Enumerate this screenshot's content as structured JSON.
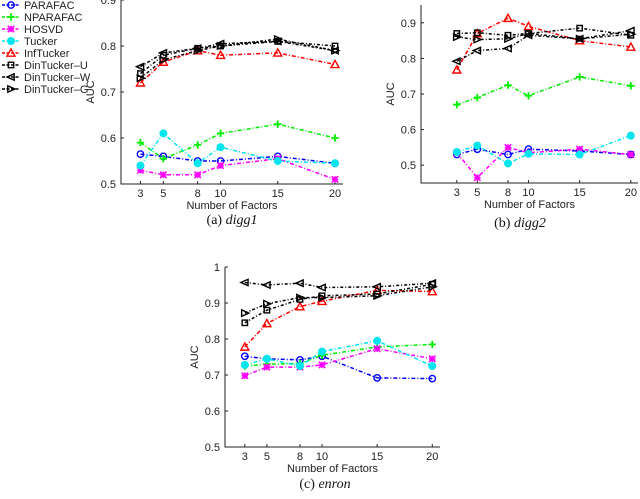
{
  "chart_data": [
    {
      "type": "line",
      "caption_label": "(a)",
      "caption_name": "digg1",
      "xlabel": "Number of Factors",
      "ylabel": "AUC",
      "x": [
        3,
        5,
        8,
        10,
        15,
        20
      ],
      "xticks": [
        "3",
        "5",
        "8",
        "10",
        "15",
        "20"
      ],
      "yticks": [
        "0.5",
        "0.6",
        "0.7",
        "0.8",
        "0.9"
      ],
      "ytick_values": [
        0.5,
        0.6,
        0.7,
        0.8,
        0.9
      ],
      "ylim": [
        0.5,
        0.9
      ],
      "xlim": [
        1.3,
        20.7
      ],
      "series": [
        {
          "name": "PARAFAC",
          "values": [
            0.565,
            0.56,
            0.55,
            0.55,
            0.56,
            0.545
          ]
        },
        {
          "name": "NPARAFAC",
          "values": [
            0.59,
            0.555,
            0.585,
            0.61,
            0.63,
            0.6
          ]
        },
        {
          "name": "HOSVD",
          "values": [
            0.53,
            0.52,
            0.52,
            0.54,
            0.555,
            0.51
          ]
        },
        {
          "name": "Tucker",
          "values": [
            0.54,
            0.61,
            0.545,
            0.58,
            0.55,
            0.545
          ]
        },
        {
          "name": "InfTucker",
          "values": [
            0.72,
            0.765,
            0.79,
            0.78,
            0.785,
            0.76
          ]
        },
        {
          "name": "DinTucker–U",
          "values": [
            0.74,
            0.78,
            0.795,
            0.8,
            0.81,
            0.8
          ]
        },
        {
          "name": "DinTucker–W",
          "values": [
            0.755,
            0.785,
            0.795,
            0.805,
            0.81,
            0.79
          ]
        },
        {
          "name": "DinTucker–G",
          "values": [
            0.73,
            0.77,
            0.79,
            0.8,
            0.815,
            0.79
          ]
        }
      ]
    },
    {
      "type": "line",
      "caption_label": "(b)",
      "caption_name": "digg2",
      "xlabel": "Number of Factors",
      "ylabel": "AUC",
      "x": [
        3,
        5,
        8,
        10,
        15,
        20
      ],
      "xticks": [
        "3",
        "5",
        "8",
        "10",
        "15",
        "20"
      ],
      "yticks": [
        "0.5",
        "0.6",
        "0.7",
        "0.8",
        "0.9"
      ],
      "ytick_values": [
        0.5,
        0.6,
        0.7,
        0.8,
        0.9
      ],
      "ylim": [
        0.45,
        0.95
      ],
      "xlim": [
        -0.5,
        20.7
      ],
      "series": [
        {
          "name": "PARAFAC",
          "values": [
            0.53,
            0.545,
            0.53,
            0.545,
            0.54,
            0.53
          ]
        },
        {
          "name": "NPARAFAC",
          "values": [
            0.67,
            0.69,
            0.725,
            0.695,
            0.748,
            0.723
          ]
        },
        {
          "name": "HOSVD",
          "values": [
            0.535,
            0.465,
            0.55,
            0.535,
            0.545,
            0.53
          ]
        },
        {
          "name": "Tucker",
          "values": [
            0.537,
            0.555,
            0.505,
            0.532,
            0.53,
            0.583
          ]
        },
        {
          "name": "InfTucker",
          "values": [
            0.768,
            0.87,
            0.913,
            0.89,
            0.85,
            0.832
          ]
        },
        {
          "name": "DinTucker–U",
          "values": [
            0.87,
            0.872,
            0.865,
            0.87,
            0.885,
            0.865
          ]
        },
        {
          "name": "DinTucker–W",
          "values": [
            0.792,
            0.822,
            0.828,
            0.865,
            0.855,
            0.878
          ]
        },
        {
          "name": "DinTucker–G",
          "values": [
            0.86,
            0.853,
            0.855,
            0.87,
            0.855,
            0.868
          ]
        }
      ]
    },
    {
      "type": "line",
      "caption_label": "(c)",
      "caption_name": "enron",
      "xlabel": "Number of Factors",
      "ylabel": "AUC",
      "x": [
        3,
        5,
        8,
        10,
        15,
        20
      ],
      "xticks": [
        "3",
        "5",
        "8",
        "10",
        "15",
        "20"
      ],
      "yticks": [
        "0.5",
        "0.6",
        "0.7",
        "0.8",
        "0.9",
        "1"
      ],
      "ytick_values": [
        0.5,
        0.6,
        0.7,
        0.8,
        0.9,
        1.0
      ],
      "ylim": [
        0.5,
        1.0
      ],
      "xlim": [
        1.2,
        20.7
      ],
      "series": [
        {
          "name": "PARAFAC",
          "values": [
            0.752,
            0.745,
            0.742,
            0.752,
            0.692,
            0.69
          ]
        },
        {
          "name": "NPARAFAC",
          "values": [
            0.725,
            0.73,
            0.732,
            0.755,
            0.778,
            0.785
          ]
        },
        {
          "name": "HOSVD",
          "values": [
            0.698,
            0.722,
            0.722,
            0.728,
            0.773,
            0.745
          ]
        },
        {
          "name": "Tucker",
          "values": [
            0.728,
            0.745,
            0.725,
            0.765,
            0.795,
            0.725
          ]
        },
        {
          "name": "InfTucker",
          "values": [
            0.778,
            0.843,
            0.89,
            0.905,
            0.935,
            0.932
          ]
        },
        {
          "name": "DinTucker–U",
          "values": [
            0.845,
            0.88,
            0.91,
            0.92,
            0.925,
            0.952
          ]
        },
        {
          "name": "DinTucker–W",
          "values": [
            0.957,
            0.95,
            0.955,
            0.943,
            0.945,
            0.955
          ]
        },
        {
          "name": "DinTucker–G",
          "values": [
            0.872,
            0.898,
            0.915,
            0.915,
            0.92,
            0.945
          ]
        }
      ]
    }
  ],
  "legend": {
    "placement": "left",
    "entries": [
      "PARAFAC",
      "NPARAFAC",
      "HOSVD",
      "Tucker",
      "InfTucker",
      "DinTucker–U",
      "DinTucker–W",
      "DinTucker–G"
    ]
  },
  "styles": [
    {
      "color": "#0000ff",
      "marker": "circle-open"
    },
    {
      "color": "#00ee00",
      "marker": "plus"
    },
    {
      "color": "#ff00ff",
      "marker": "star"
    },
    {
      "color": "#00e5ee",
      "marker": "circle-filled"
    },
    {
      "color": "#ff0000",
      "marker": "triangle-up"
    },
    {
      "color": "#000000",
      "marker": "square"
    },
    {
      "color": "#000000",
      "marker": "triangle-left"
    },
    {
      "color": "#000000",
      "marker": "triangle-right"
    }
  ]
}
